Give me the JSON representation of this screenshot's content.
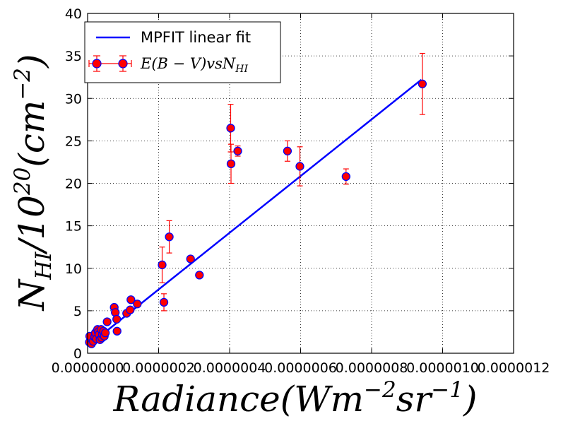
{
  "chart_data": {
    "type": "scatter",
    "title": "",
    "xlabel": "Radiance(Wm^-2 sr^-1)",
    "ylabel": "N_HI/10^20(cm^-2)",
    "xlim": [
      0,
      1.2e-06
    ],
    "ylim": [
      0,
      40
    ],
    "x_ticks": [
      0,
      2e-07,
      4e-07,
      6e-07,
      8e-07,
      1e-06,
      1.2e-06
    ],
    "x_tick_labels": [
      "0.0000000",
      "0.0000002",
      "0.0000004",
      "0.0000006",
      "0.0000008",
      "0.0000010",
      "0.0000012"
    ],
    "y_ticks": [
      0,
      5,
      10,
      15,
      20,
      25,
      30,
      35,
      40
    ],
    "y_tick_labels": [
      "0",
      "5",
      "10",
      "15",
      "20",
      "25",
      "30",
      "35",
      "40"
    ],
    "grid": true,
    "legend_position": "top-left",
    "colors": {
      "fit_line": "#0000ff",
      "marker_face": "#ff0000",
      "marker_edge": "#0000ff",
      "errorbar": "#ff0000"
    },
    "series": [
      {
        "name": "MPFIT linear fit",
        "kind": "line",
        "x": [
          5e-09,
          9.4e-07
        ],
        "y": [
          1.0,
          32.2
        ]
      },
      {
        "name": "E(B-V)vsN_HI",
        "kind": "errorbar",
        "points": [
          {
            "x": 5e-09,
            "y": 1.3,
            "err": 0
          },
          {
            "x": 6e-09,
            "y": 2.0,
            "err": 0
          },
          {
            "x": 1.1e-08,
            "y": 1.1,
            "err": 0
          },
          {
            "x": 1.6e-08,
            "y": 1.4,
            "err": 0
          },
          {
            "x": 2e-08,
            "y": 1.9,
            "err": 0
          },
          {
            "x": 2.2e-08,
            "y": 2.4,
            "err": 0
          },
          {
            "x": 2.5e-08,
            "y": 1.7,
            "err": 0
          },
          {
            "x": 2.8e-08,
            "y": 2.8,
            "err": 0
          },
          {
            "x": 3e-08,
            "y": 2.5,
            "err": 0
          },
          {
            "x": 3.2e-08,
            "y": 2.2,
            "err": 0
          },
          {
            "x": 3.5e-08,
            "y": 1.6,
            "err": 0
          },
          {
            "x": 3.8e-08,
            "y": 2.8,
            "err": 0
          },
          {
            "x": 4e-08,
            "y": 1.8,
            "err": 0
          },
          {
            "x": 4.2e-08,
            "y": 2.2,
            "err": 0
          },
          {
            "x": 4.5e-08,
            "y": 2.6,
            "err": 0
          },
          {
            "x": 4.7e-08,
            "y": 2.0,
            "err": 0
          },
          {
            "x": 5e-08,
            "y": 2.4,
            "err": 0
          },
          {
            "x": 5.5e-08,
            "y": 3.7,
            "err": 0
          },
          {
            "x": 7.5e-08,
            "y": 5.4,
            "err": 0
          },
          {
            "x": 7.8e-08,
            "y": 4.8,
            "err": 0
          },
          {
            "x": 8.2e-08,
            "y": 4.0,
            "err": 0
          },
          {
            "x": 8.3e-08,
            "y": 2.6,
            "err": 0
          },
          {
            "x": 1.1e-07,
            "y": 4.7,
            "err": 0
          },
          {
            "x": 1.2e-07,
            "y": 5.1,
            "err": 0
          },
          {
            "x": 1.22e-07,
            "y": 6.3,
            "err": 0
          },
          {
            "x": 1.4e-07,
            "y": 5.8,
            "err": 0
          },
          {
            "x": 2.1e-07,
            "y": 10.4,
            "err": 2.1
          },
          {
            "x": 2.15e-07,
            "y": 6.0,
            "err": 1.0
          },
          {
            "x": 2.3e-07,
            "y": 13.7,
            "err": 1.9
          },
          {
            "x": 2.9e-07,
            "y": 11.1,
            "err": 0
          },
          {
            "x": 3.15e-07,
            "y": 9.2,
            "err": 0
          },
          {
            "x": 4.03e-07,
            "y": 26.5,
            "err": 2.8
          },
          {
            "x": 4.04e-07,
            "y": 22.3,
            "err": 2.3
          },
          {
            "x": 4.23e-07,
            "y": 23.8,
            "err": 0.6
          },
          {
            "x": 5.63e-07,
            "y": 23.8,
            "err": 1.2
          },
          {
            "x": 5.98e-07,
            "y": 22.0,
            "err": 2.3
          },
          {
            "x": 7.28e-07,
            "y": 20.8,
            "err": 0.9
          },
          {
            "x": 9.43e-07,
            "y": 31.7,
            "err": 3.6
          }
        ]
      }
    ]
  }
}
